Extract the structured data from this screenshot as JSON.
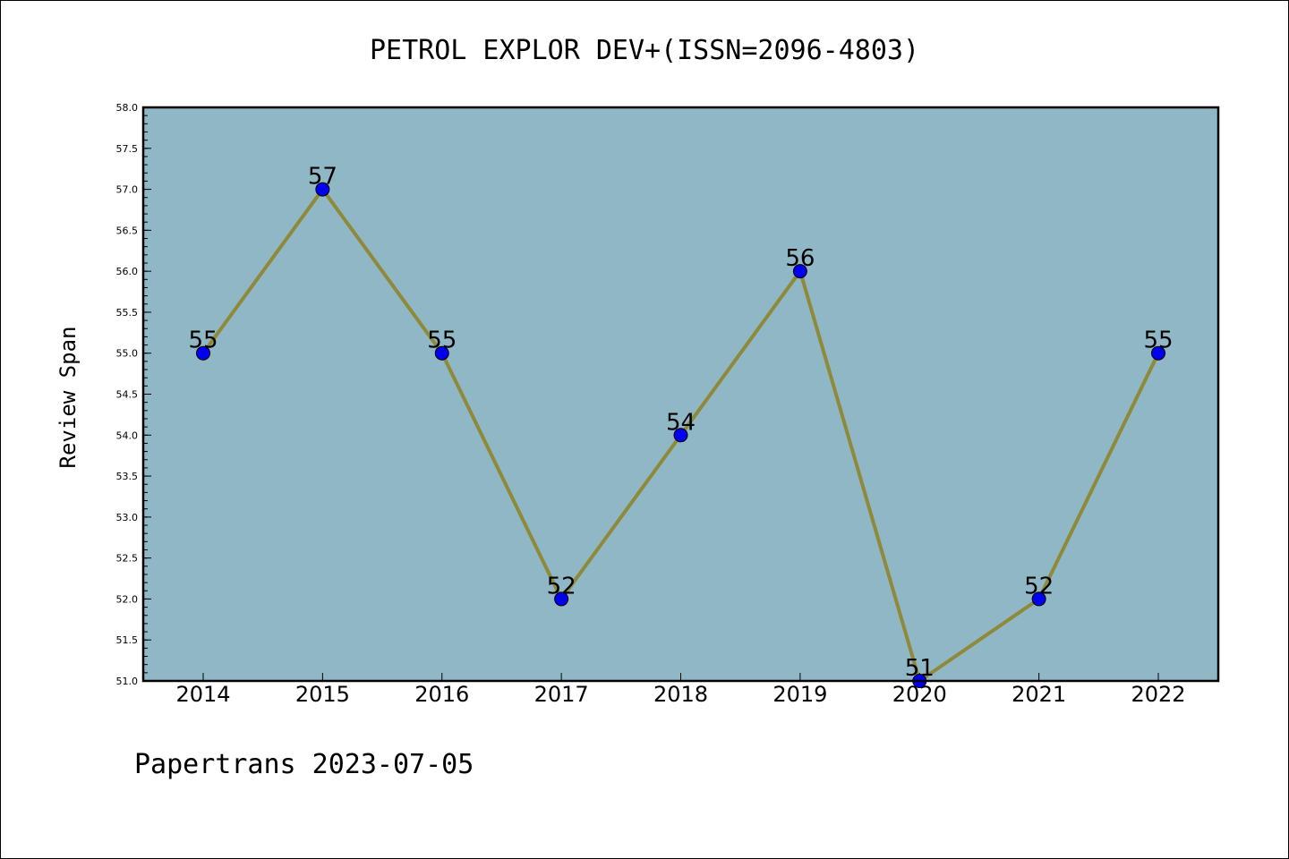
{
  "chart_data": {
    "type": "line",
    "title": "PETROL EXPLOR DEV+(ISSN=2096-4803)",
    "xlabel": "",
    "ylabel": "Review Span",
    "categories": [
      "2014",
      "2015",
      "2016",
      "2017",
      "2018",
      "2019",
      "2020",
      "2021",
      "2022"
    ],
    "values": [
      55,
      57,
      55,
      52,
      54,
      56,
      51,
      52,
      55
    ],
    "data_labels": [
      "55",
      "57",
      "55",
      "52",
      "54",
      "56",
      "51",
      "52",
      "55"
    ],
    "ylim": [
      51.0,
      58.0
    ],
    "yticks": [
      "51.0",
      "51.5",
      "52.0",
      "52.5",
      "53.0",
      "53.5",
      "54.0",
      "54.5",
      "55.0",
      "55.5",
      "56.0",
      "56.5",
      "57.0",
      "57.5",
      "58.0"
    ],
    "grid": false,
    "colors": {
      "plot_background": "#8fb7c5",
      "line": "#8e8a3a",
      "marker": "#0000ee",
      "marker_edge": "#000000"
    }
  },
  "footer": "Papertrans 2023-07-05"
}
